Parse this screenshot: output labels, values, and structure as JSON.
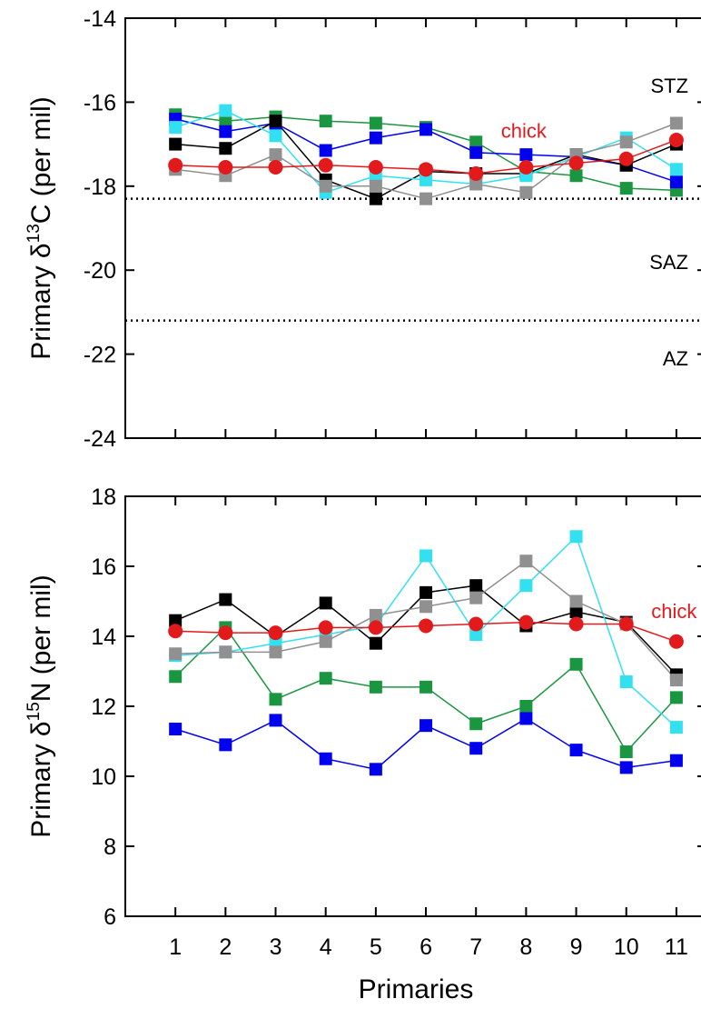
{
  "figure": {
    "xlabel": "Primaries"
  },
  "chart_data": [
    {
      "type": "line",
      "ylabel": "Primary δ13C (per mil)",
      "ylabel_parts": {
        "pre": "Primary ",
        "delta": "δ",
        "sup": "13",
        "post": "C (per mil)"
      },
      "ylim": [
        -24,
        -14
      ],
      "yticks": [
        -24,
        -22,
        -20,
        -18,
        -16,
        -14
      ],
      "x": [
        1,
        2,
        3,
        4,
        5,
        6,
        7,
        8,
        9,
        10,
        11
      ],
      "xlim": [
        0,
        11.6
      ],
      "grid": false,
      "zone_labels": [
        {
          "label": "STZ",
          "y": -15.6
        },
        {
          "label": "SAZ",
          "y": -19.8
        },
        {
          "label": "AZ",
          "y": -22.1
        }
      ],
      "boundaries": [
        -18.3,
        -21.2
      ],
      "chick_label": {
        "text": "chick",
        "x": 7.5,
        "y": -16.7,
        "color": "#e31a1c"
      },
      "series": [
        {
          "color": "#1a9641",
          "marker": "square",
          "values": [
            -16.3,
            -16.45,
            -16.35,
            -16.45,
            -16.5,
            -16.6,
            -16.95,
            -17.65,
            -17.75,
            -18.05,
            -18.1
          ]
        },
        {
          "color": "#0000ee",
          "marker": "square",
          "values": [
            -16.4,
            -16.7,
            -16.5,
            -17.15,
            -16.85,
            -16.65,
            -17.2,
            -17.25,
            -17.3,
            -17.5,
            -17.9
          ]
        },
        {
          "color": "#000000",
          "marker": "square",
          "values": [
            -17.0,
            -17.1,
            -16.45,
            -17.85,
            -18.3,
            -17.65,
            -17.7,
            -17.7,
            -17.25,
            -17.5,
            -17.0
          ]
        },
        {
          "color": "#33e0f0",
          "marker": "square",
          "values": [
            -16.6,
            -16.2,
            -16.8,
            -18.15,
            -17.75,
            -17.85,
            -17.95,
            -17.75,
            -17.3,
            -16.85,
            -17.6
          ]
        },
        {
          "color": "#909090",
          "marker": "square",
          "values": [
            -17.6,
            -17.75,
            -17.25,
            -18.0,
            -18.0,
            -18.3,
            -17.95,
            -18.15,
            -17.25,
            -16.95,
            -16.5
          ]
        },
        {
          "color": "#e31a1c",
          "marker": "circle",
          "values": [
            -17.5,
            -17.55,
            -17.55,
            -17.5,
            -17.55,
            -17.6,
            -17.7,
            -17.55,
            -17.45,
            -17.35,
            -16.9
          ]
        }
      ]
    },
    {
      "type": "line",
      "ylabel": "Primary δ15N (per mil)",
      "ylabel_parts": {
        "pre": "Primary ",
        "delta": "δ",
        "sup": "15",
        "post": "N (per mil)"
      },
      "ylim": [
        6,
        18
      ],
      "yticks": [
        6,
        8,
        10,
        12,
        14,
        16,
        18
      ],
      "x": [
        1,
        2,
        3,
        4,
        5,
        6,
        7,
        8,
        9,
        10,
        11
      ],
      "xlim": [
        0,
        11.6
      ],
      "xticks": [
        "1",
        "2",
        "3",
        "4",
        "5",
        "6",
        "7",
        "8",
        "9",
        "10",
        "11"
      ],
      "grid": false,
      "chick_label": {
        "text": "chick",
        "x": 10.5,
        "y": 14.7,
        "color": "#e31a1c"
      },
      "series": [
        {
          "color": "#1a9641",
          "marker": "square",
          "values": [
            12.85,
            14.25,
            12.2,
            12.8,
            12.55,
            12.55,
            11.5,
            12.0,
            13.2,
            10.7,
            12.25
          ]
        },
        {
          "color": "#0000ee",
          "marker": "square",
          "values": [
            11.35,
            10.9,
            11.6,
            10.5,
            10.2,
            11.45,
            10.8,
            11.65,
            10.75,
            10.25,
            10.45
          ]
        },
        {
          "color": "#000000",
          "marker": "square",
          "values": [
            14.45,
            15.05,
            14.0,
            14.95,
            13.8,
            15.25,
            15.45,
            14.3,
            14.7,
            14.4,
            12.9
          ]
        },
        {
          "color": "#33e0f0",
          "marker": "square",
          "values": [
            13.45,
            13.55,
            13.8,
            14.05,
            14.3,
            16.3,
            14.05,
            15.45,
            16.85,
            12.7,
            11.4
          ]
        },
        {
          "color": "#909090",
          "marker": "square",
          "values": [
            13.5,
            13.55,
            13.55,
            13.85,
            14.6,
            14.85,
            15.1,
            16.15,
            15.0,
            14.35,
            12.75
          ]
        },
        {
          "color": "#e31a1c",
          "marker": "circle",
          "values": [
            14.15,
            14.1,
            14.1,
            14.25,
            14.25,
            14.3,
            14.35,
            14.4,
            14.35,
            14.35,
            13.85
          ]
        }
      ]
    }
  ]
}
